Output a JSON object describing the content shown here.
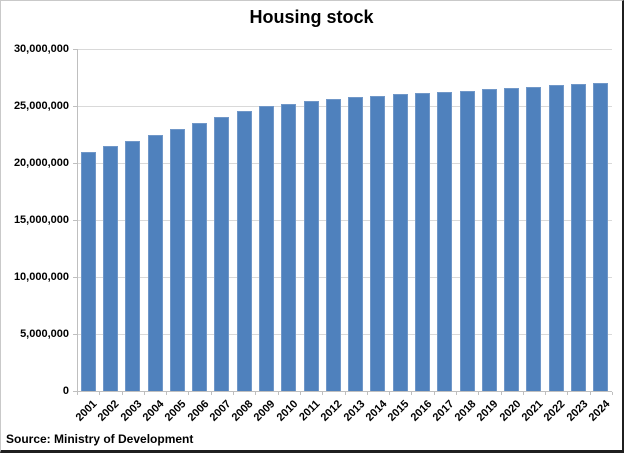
{
  "chart_data": {
    "type": "bar",
    "title": "Housing stock",
    "categories": [
      "2001",
      "2002",
      "2003",
      "2004",
      "2005",
      "2006",
      "2007",
      "2008",
      "2009",
      "2010",
      "2011",
      "2012",
      "2013",
      "2014",
      "2015",
      "2016",
      "2017",
      "2018",
      "2019",
      "2020",
      "2021",
      "2022",
      "2023",
      "2024"
    ],
    "values": [
      21000000,
      21500000,
      21950000,
      22450000,
      22950000,
      23500000,
      24050000,
      24600000,
      25000000,
      25200000,
      25450000,
      25600000,
      25750000,
      25900000,
      26050000,
      26150000,
      26250000,
      26350000,
      26450000,
      26550000,
      26700000,
      26800000,
      26900000,
      27000000
    ],
    "xlabel": "",
    "ylabel": "",
    "ylim": [
      0,
      30000000
    ],
    "y_ticks": [
      {
        "value": 0,
        "label": "0"
      },
      {
        "value": 5000000,
        "label": "5,000,000"
      },
      {
        "value": 10000000,
        "label": "10,000,000"
      },
      {
        "value": 15000000,
        "label": "15,000,000"
      },
      {
        "value": 20000000,
        "label": "20,000,000"
      },
      {
        "value": 25000000,
        "label": "25,000,000"
      },
      {
        "value": 30000000,
        "label": "30,000,000"
      }
    ],
    "grid": true,
    "legend": false,
    "bar_color": "#4f81bd",
    "bar_edge_color": "#7097c8",
    "gridline_color": "#d9d9d9",
    "axis_color": "#bfbfbf"
  },
  "source_note": "Source: Ministry of Development",
  "frame": {
    "background": "#ffffff",
    "border_light": "#c9c9c9",
    "border_dark": "#1f1f1f"
  }
}
